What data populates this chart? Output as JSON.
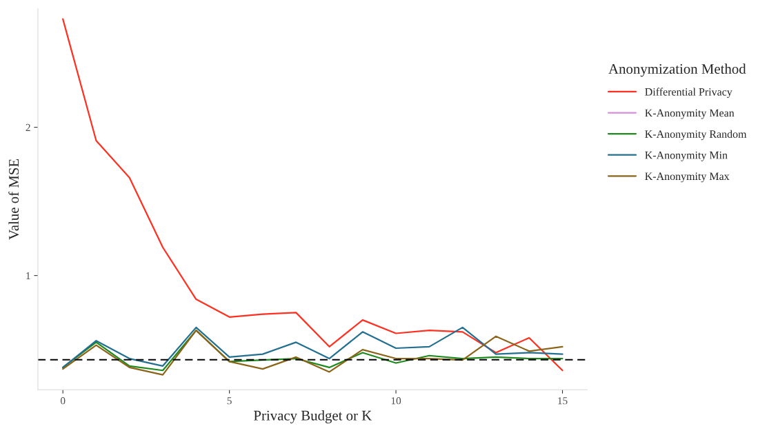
{
  "chart_data": {
    "type": "line",
    "xlabel": "Privacy Budget or K",
    "ylabel": "Value of MSE",
    "legend_title": "Anonymization Method",
    "x": [
      0,
      1,
      2,
      3,
      4,
      5,
      6,
      7,
      8,
      9,
      10,
      11,
      12,
      13,
      14,
      15
    ],
    "series": [
      {
        "name": "Differential Privacy",
        "color": "#ff3020",
        "values": [
          2.73,
          1.91,
          1.66,
          1.19,
          0.84,
          0.72,
          0.74,
          0.75,
          0.52,
          0.7,
          0.61,
          0.63,
          0.62,
          0.48,
          0.58,
          0.36
        ]
      },
      {
        "name": "K-Anonymity Mean",
        "color": "#d58fd8",
        "values": [
          null,
          null,
          null,
          null,
          null,
          null,
          null,
          null,
          null,
          null,
          null,
          null,
          null,
          null,
          null,
          null
        ]
      },
      {
        "name": "K-Anonymity Random",
        "color": "#1e8a1e",
        "values": [
          0.38,
          0.55,
          0.39,
          0.36,
          0.63,
          0.42,
          0.43,
          0.44,
          0.38,
          0.48,
          0.41,
          0.46,
          0.44,
          0.45,
          0.44,
          0.44
        ]
      },
      {
        "name": "K-Anonymity Min",
        "color": "#226f8f",
        "values": [
          0.38,
          0.56,
          0.44,
          0.39,
          0.65,
          0.45,
          0.47,
          0.55,
          0.44,
          0.62,
          0.51,
          0.52,
          0.65,
          0.47,
          0.48,
          0.47
        ]
      },
      {
        "name": "K-Anonymity Max",
        "color": "#8b6419",
        "values": [
          0.37,
          0.53,
          0.38,
          0.33,
          0.63,
          0.42,
          0.37,
          0.45,
          0.35,
          0.5,
          0.44,
          0.44,
          0.43,
          0.59,
          0.49,
          0.52
        ]
      }
    ],
    "ref_lines": [
      {
        "axis": "y",
        "value": 0.432,
        "color": "#000000",
        "line_style": "dashed"
      }
    ],
    "xlim": [
      -0.75,
      15.75
    ],
    "ylim": [
      0.23,
      2.8
    ],
    "xticks": [
      0,
      5,
      10,
      15
    ],
    "yticks": [
      1,
      2
    ],
    "grid": false,
    "legend": "right",
    "line_style": "solid"
  }
}
